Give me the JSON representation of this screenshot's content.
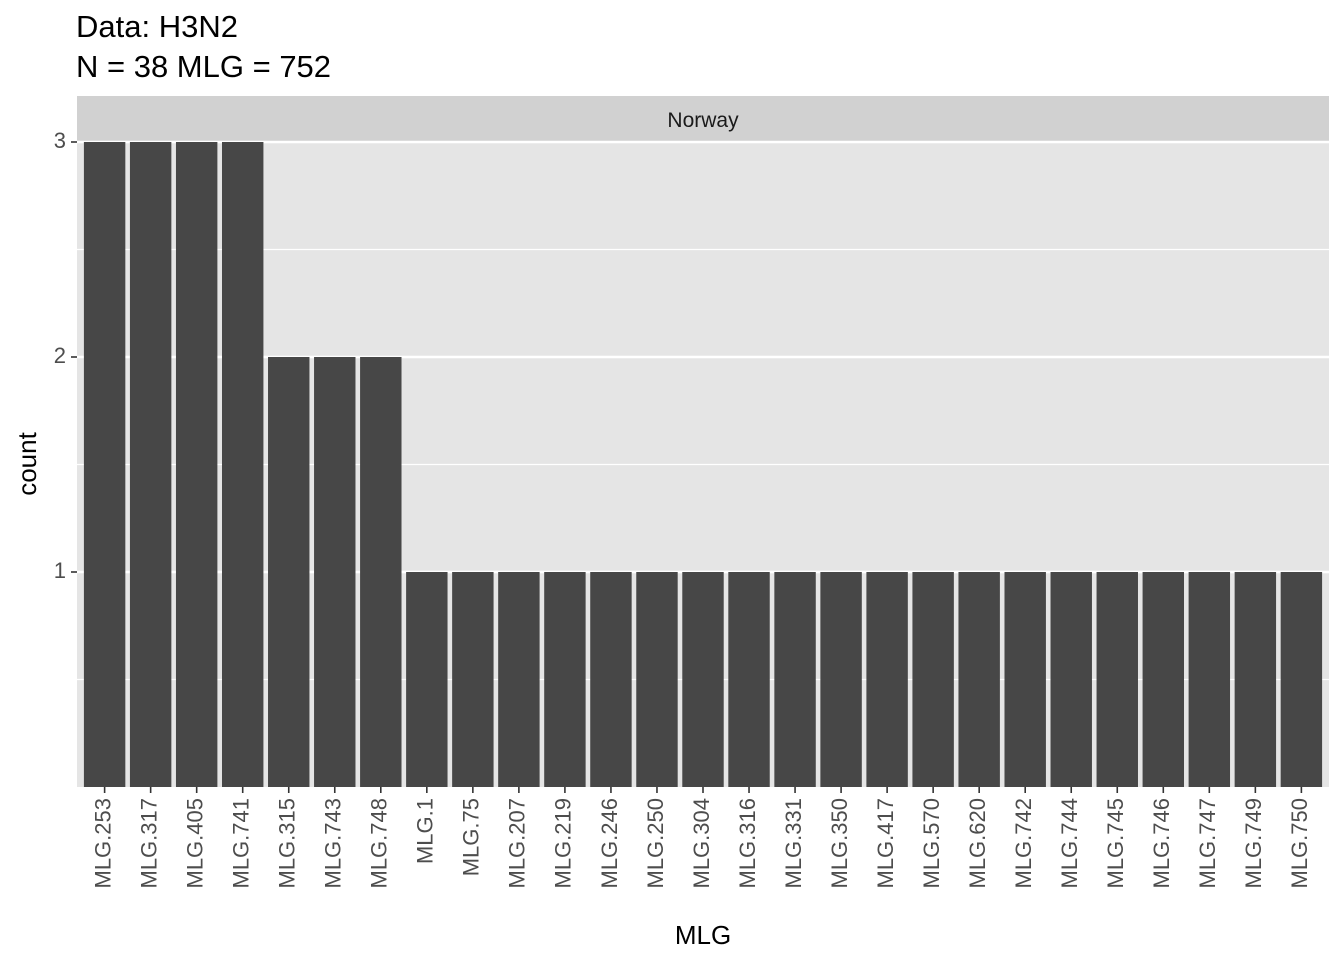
{
  "chart_data": {
    "type": "bar",
    "title": "Data: H3N2",
    "subtitle": "N = 38 MLG = 752",
    "facet_label": "Norway",
    "xlabel": "MLG",
    "ylabel": "count",
    "ylim": [
      0,
      3
    ],
    "yticks": [
      1,
      2,
      3
    ],
    "grid": true,
    "categories": [
      "MLG.253",
      "MLG.317",
      "MLG.405",
      "MLG.741",
      "MLG.315",
      "MLG.743",
      "MLG.748",
      "MLG.1",
      "MLG.75",
      "MLG.207",
      "MLG.219",
      "MLG.246",
      "MLG.250",
      "MLG.304",
      "MLG.316",
      "MLG.331",
      "MLG.350",
      "MLG.417",
      "MLG.570",
      "MLG.620",
      "MLG.742",
      "MLG.744",
      "MLG.745",
      "MLG.746",
      "MLG.747",
      "MLG.749",
      "MLG.750"
    ],
    "values": [
      3,
      3,
      3,
      3,
      2,
      2,
      2,
      1,
      1,
      1,
      1,
      1,
      1,
      1,
      1,
      1,
      1,
      1,
      1,
      1,
      1,
      1,
      1,
      1,
      1,
      1,
      1
    ],
    "colors": {
      "bar": "#474747",
      "panel": "#e5e5e5",
      "strip": "#d1d1d1",
      "grid": "#ffffff",
      "tick": "#333333"
    }
  }
}
